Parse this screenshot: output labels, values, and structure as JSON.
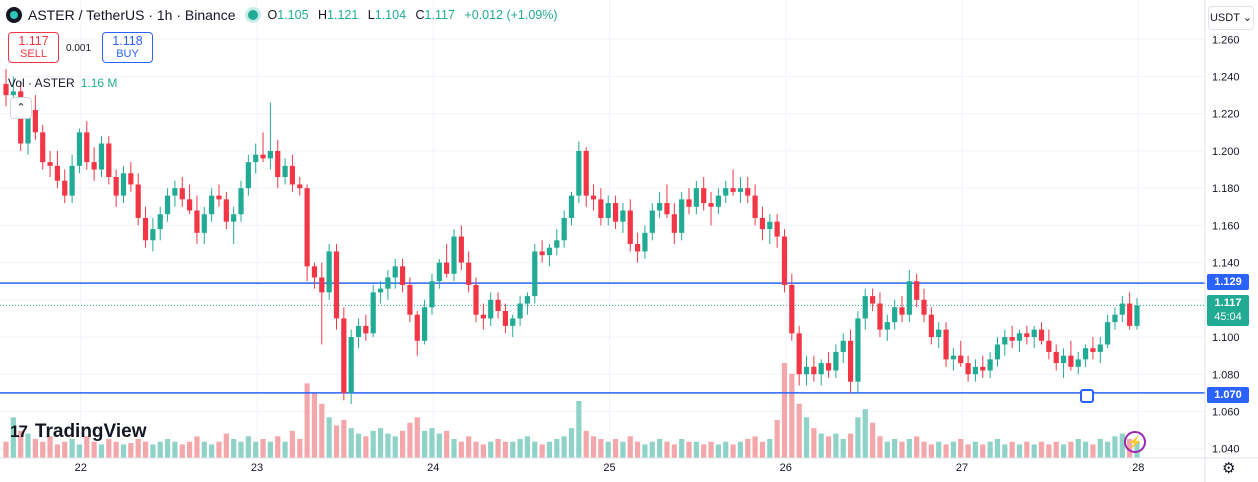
{
  "header": {
    "symbol": "ASTER / TetherUS · 1h · Binance",
    "o_key": "O",
    "o_val": "1.105",
    "h_key": "H",
    "h_val": "1.121",
    "l_key": "L",
    "l_val": "1.104",
    "c_key": "C",
    "c_val": "1.117",
    "change": "+0.012 (+1.09%)"
  },
  "trade": {
    "sell_price": "1.117",
    "sell_label": "SELL",
    "spread": "0.001",
    "buy_price": "1.118",
    "buy_label": "BUY"
  },
  "volume_legend": {
    "label": "Vol · ASTER",
    "value": "1.16 M"
  },
  "currency_button": "USDT",
  "collapse_icon": "chevron-up-icon",
  "brand": {
    "mark": "17",
    "name": "TradingView"
  },
  "price_labels": {
    "upper": "1.129",
    "lower": "1.070",
    "current": "1.117",
    "countdown": "45:04"
  },
  "colors": {
    "up": "#22ab94",
    "down": "#f23645",
    "up_vol": "#8fd3c8",
    "down_vol": "#f4a7ab",
    "hline": "#2962ff",
    "bg": "#ffffff"
  },
  "chart_data": {
    "type": "candlestick",
    "interval": "1h",
    "ylim": [
      1.035,
      1.265
    ],
    "y_ticks": [
      "1.260",
      "1.240",
      "1.220",
      "1.200",
      "1.180",
      "1.160",
      "1.140",
      "1.120",
      "1.100",
      "1.080",
      "1.060",
      "1.040"
    ],
    "x_ticks": [
      {
        "label": "22",
        "index": 5
      },
      {
        "label": "23",
        "index": 29
      },
      {
        "label": "24",
        "index": 53
      },
      {
        "label": "25",
        "index": 77
      },
      {
        "label": "26",
        "index": 101
      },
      {
        "label": "27",
        "index": 125
      },
      {
        "label": "28",
        "index": 149
      }
    ],
    "horizontal_lines": [
      1.129,
      1.07
    ],
    "current_price": 1.117,
    "grid": true,
    "candles": [
      [
        1.236,
        1.244,
        1.224,
        1.23
      ],
      [
        1.23,
        1.24,
        1.222,
        1.232
      ],
      [
        1.232,
        1.237,
        1.2,
        1.204
      ],
      [
        1.204,
        1.226,
        1.198,
        1.222
      ],
      [
        1.222,
        1.23,
        1.206,
        1.21
      ],
      [
        1.21,
        1.214,
        1.19,
        1.194
      ],
      [
        1.194,
        1.2,
        1.186,
        1.192
      ],
      [
        1.192,
        1.2,
        1.18,
        1.184
      ],
      [
        1.184,
        1.19,
        1.172,
        1.176
      ],
      [
        1.176,
        1.198,
        1.172,
        1.192
      ],
      [
        1.192,
        1.212,
        1.188,
        1.21
      ],
      [
        1.21,
        1.216,
        1.19,
        1.194
      ],
      [
        1.194,
        1.202,
        1.184,
        1.19
      ],
      [
        1.19,
        1.208,
        1.186,
        1.204
      ],
      [
        1.204,
        1.208,
        1.182,
        1.186
      ],
      [
        1.186,
        1.19,
        1.17,
        1.176
      ],
      [
        1.176,
        1.192,
        1.172,
        1.188
      ],
      [
        1.188,
        1.194,
        1.178,
        1.182
      ],
      [
        1.182,
        1.188,
        1.16,
        1.164
      ],
      [
        1.164,
        1.17,
        1.148,
        1.152
      ],
      [
        1.152,
        1.164,
        1.146,
        1.158
      ],
      [
        1.158,
        1.17,
        1.152,
        1.166
      ],
      [
        1.166,
        1.18,
        1.162,
        1.176
      ],
      [
        1.176,
        1.184,
        1.17,
        1.18
      ],
      [
        1.18,
        1.186,
        1.17,
        1.174
      ],
      [
        1.174,
        1.182,
        1.166,
        1.168
      ],
      [
        1.168,
        1.176,
        1.15,
        1.156
      ],
      [
        1.156,
        1.17,
        1.15,
        1.166
      ],
      [
        1.166,
        1.18,
        1.162,
        1.176
      ],
      [
        1.176,
        1.182,
        1.17,
        1.174
      ],
      [
        1.174,
        1.178,
        1.158,
        1.162
      ],
      [
        1.162,
        1.17,
        1.15,
        1.166
      ],
      [
        1.166,
        1.184,
        1.162,
        1.18
      ],
      [
        1.18,
        1.198,
        1.176,
        1.194
      ],
      [
        1.194,
        1.204,
        1.188,
        1.198
      ],
      [
        1.198,
        1.21,
        1.194,
        1.196
      ],
      [
        1.196,
        1.226,
        1.19,
        1.2
      ],
      [
        1.2,
        1.206,
        1.18,
        1.186
      ],
      [
        1.186,
        1.196,
        1.182,
        1.192
      ],
      [
        1.192,
        1.198,
        1.178,
        1.182
      ],
      [
        1.182,
        1.186,
        1.176,
        1.18
      ],
      [
        1.18,
        1.182,
        1.13,
        1.138
      ],
      [
        1.138,
        1.14,
        1.126,
        1.132
      ],
      [
        1.132,
        1.14,
        1.096,
        1.124
      ],
      [
        1.124,
        1.15,
        1.12,
        1.146
      ],
      [
        1.146,
        1.15,
        1.104,
        1.11
      ],
      [
        1.11,
        1.116,
        1.066,
        1.07
      ],
      [
        1.07,
        1.104,
        1.064,
        1.1
      ],
      [
        1.1,
        1.11,
        1.094,
        1.106
      ],
      [
        1.106,
        1.112,
        1.098,
        1.102
      ],
      [
        1.102,
        1.128,
        1.1,
        1.124
      ],
      [
        1.124,
        1.13,
        1.118,
        1.126
      ],
      [
        1.126,
        1.136,
        1.12,
        1.132
      ],
      [
        1.132,
        1.142,
        1.126,
        1.138
      ],
      [
        1.138,
        1.142,
        1.124,
        1.128
      ],
      [
        1.128,
        1.132,
        1.108,
        1.112
      ],
      [
        1.112,
        1.114,
        1.09,
        1.098
      ],
      [
        1.098,
        1.12,
        1.096,
        1.116
      ],
      [
        1.116,
        1.134,
        1.112,
        1.13
      ],
      [
        1.13,
        1.142,
        1.126,
        1.14
      ],
      [
        1.14,
        1.15,
        1.132,
        1.134
      ],
      [
        1.134,
        1.158,
        1.13,
        1.154
      ],
      [
        1.154,
        1.16,
        1.136,
        1.14
      ],
      [
        1.14,
        1.146,
        1.124,
        1.128
      ],
      [
        1.128,
        1.132,
        1.108,
        1.112
      ],
      [
        1.112,
        1.118,
        1.104,
        1.11
      ],
      [
        1.11,
        1.124,
        1.106,
        1.12
      ],
      [
        1.12,
        1.124,
        1.11,
        1.114
      ],
      [
        1.114,
        1.118,
        1.102,
        1.106
      ],
      [
        1.106,
        1.112,
        1.1,
        1.11
      ],
      [
        1.11,
        1.122,
        1.106,
        1.118
      ],
      [
        1.118,
        1.124,
        1.112,
        1.122
      ],
      [
        1.122,
        1.15,
        1.118,
        1.146
      ],
      [
        1.146,
        1.152,
        1.14,
        1.144
      ],
      [
        1.144,
        1.15,
        1.138,
        1.148
      ],
      [
        1.148,
        1.158,
        1.144,
        1.152
      ],
      [
        1.152,
        1.168,
        1.148,
        1.164
      ],
      [
        1.164,
        1.178,
        1.16,
        1.176
      ],
      [
        1.176,
        1.205,
        1.172,
        1.2
      ],
      [
        1.2,
        1.202,
        1.17,
        1.176
      ],
      [
        1.176,
        1.182,
        1.168,
        1.174
      ],
      [
        1.174,
        1.18,
        1.16,
        1.164
      ],
      [
        1.164,
        1.176,
        1.16,
        1.172
      ],
      [
        1.172,
        1.176,
        1.158,
        1.162
      ],
      [
        1.162,
        1.172,
        1.156,
        1.168
      ],
      [
        1.168,
        1.174,
        1.146,
        1.15
      ],
      [
        1.15,
        1.156,
        1.14,
        1.146
      ],
      [
        1.146,
        1.16,
        1.142,
        1.156
      ],
      [
        1.156,
        1.172,
        1.152,
        1.168
      ],
      [
        1.168,
        1.178,
        1.164,
        1.172
      ],
      [
        1.172,
        1.182,
        1.164,
        1.166
      ],
      [
        1.166,
        1.172,
        1.15,
        1.156
      ],
      [
        1.156,
        1.178,
        1.152,
        1.174
      ],
      [
        1.174,
        1.18,
        1.166,
        1.17
      ],
      [
        1.17,
        1.184,
        1.166,
        1.18
      ],
      [
        1.18,
        1.186,
        1.168,
        1.172
      ],
      [
        1.172,
        1.178,
        1.16,
        1.17
      ],
      [
        1.17,
        1.18,
        1.166,
        1.176
      ],
      [
        1.176,
        1.184,
        1.172,
        1.18
      ],
      [
        1.18,
        1.19,
        1.176,
        1.178
      ],
      [
        1.178,
        1.186,
        1.172,
        1.18
      ],
      [
        1.18,
        1.186,
        1.172,
        1.176
      ],
      [
        1.176,
        1.182,
        1.16,
        1.164
      ],
      [
        1.164,
        1.17,
        1.152,
        1.158
      ],
      [
        1.158,
        1.166,
        1.15,
        1.162
      ],
      [
        1.162,
        1.166,
        1.148,
        1.154
      ],
      [
        1.154,
        1.158,
        1.124,
        1.128
      ],
      [
        1.128,
        1.134,
        1.098,
        1.102
      ],
      [
        1.102,
        1.106,
        1.074,
        1.08
      ],
      [
        1.08,
        1.09,
        1.074,
        1.084
      ],
      [
        1.084,
        1.09,
        1.076,
        1.08
      ],
      [
        1.08,
        1.088,
        1.074,
        1.086
      ],
      [
        1.086,
        1.092,
        1.078,
        1.082
      ],
      [
        1.082,
        1.096,
        1.078,
        1.092
      ],
      [
        1.092,
        1.102,
        1.086,
        1.098
      ],
      [
        1.098,
        1.104,
        1.07,
        1.076
      ],
      [
        1.076,
        1.114,
        1.07,
        1.11
      ],
      [
        1.11,
        1.126,
        1.104,
        1.122
      ],
      [
        1.122,
        1.126,
        1.114,
        1.118
      ],
      [
        1.118,
        1.124,
        1.1,
        1.104
      ],
      [
        1.104,
        1.112,
        1.098,
        1.108
      ],
      [
        1.108,
        1.12,
        1.104,
        1.116
      ],
      [
        1.116,
        1.122,
        1.108,
        1.112
      ],
      [
        1.112,
        1.136,
        1.108,
        1.13
      ],
      [
        1.13,
        1.134,
        1.116,
        1.12
      ],
      [
        1.12,
        1.126,
        1.108,
        1.112
      ],
      [
        1.112,
        1.116,
        1.096,
        1.1
      ],
      [
        1.1,
        1.108,
        1.094,
        1.104
      ],
      [
        1.104,
        1.108,
        1.084,
        1.088
      ],
      [
        1.088,
        1.094,
        1.082,
        1.09
      ],
      [
        1.09,
        1.098,
        1.084,
        1.086
      ],
      [
        1.086,
        1.09,
        1.076,
        1.08
      ],
      [
        1.08,
        1.088,
        1.076,
        1.084
      ],
      [
        1.084,
        1.09,
        1.078,
        1.082
      ],
      [
        1.082,
        1.092,
        1.078,
        1.088
      ],
      [
        1.088,
        1.1,
        1.084,
        1.096
      ],
      [
        1.096,
        1.104,
        1.09,
        1.1
      ],
      [
        1.1,
        1.106,
        1.094,
        1.098
      ],
      [
        1.098,
        1.104,
        1.092,
        1.102
      ],
      [
        1.102,
        1.106,
        1.096,
        1.1
      ],
      [
        1.1,
        1.106,
        1.094,
        1.104
      ],
      [
        1.104,
        1.108,
        1.096,
        1.098
      ],
      [
        1.098,
        1.104,
        1.088,
        1.092
      ],
      [
        1.092,
        1.096,
        1.082,
        1.086
      ],
      [
        1.086,
        1.094,
        1.078,
        1.09
      ],
      [
        1.09,
        1.098,
        1.082,
        1.084
      ],
      [
        1.084,
        1.092,
        1.08,
        1.088
      ],
      [
        1.088,
        1.096,
        1.084,
        1.094
      ],
      [
        1.094,
        1.1,
        1.088,
        1.092
      ],
      [
        1.092,
        1.1,
        1.086,
        1.096
      ],
      [
        1.096,
        1.112,
        1.094,
        1.108
      ],
      [
        1.108,
        1.116,
        1.104,
        1.112
      ],
      [
        1.112,
        1.122,
        1.108,
        1.118
      ],
      [
        1.118,
        1.124,
        1.104,
        1.106
      ],
      [
        1.106,
        1.121,
        1.104,
        1.117
      ]
    ],
    "volume_relative": [
      0.12,
      0.3,
      0.2,
      0.18,
      0.14,
      0.12,
      0.16,
      0.1,
      0.12,
      0.14,
      0.1,
      0.16,
      0.12,
      0.1,
      0.14,
      0.12,
      0.1,
      0.11,
      0.14,
      0.12,
      0.1,
      0.12,
      0.14,
      0.12,
      0.1,
      0.12,
      0.16,
      0.12,
      0.1,
      0.12,
      0.18,
      0.14,
      0.12,
      0.16,
      0.12,
      0.14,
      0.12,
      0.16,
      0.12,
      0.2,
      0.14,
      0.55,
      0.48,
      0.4,
      0.3,
      0.24,
      0.28,
      0.22,
      0.18,
      0.16,
      0.2,
      0.22,
      0.18,
      0.16,
      0.2,
      0.26,
      0.3,
      0.2,
      0.22,
      0.18,
      0.2,
      0.14,
      0.12,
      0.16,
      0.12,
      0.1,
      0.12,
      0.14,
      0.12,
      0.12,
      0.14,
      0.16,
      0.12,
      0.1,
      0.12,
      0.14,
      0.16,
      0.22,
      0.42,
      0.2,
      0.16,
      0.14,
      0.12,
      0.14,
      0.12,
      0.16,
      0.12,
      0.1,
      0.12,
      0.14,
      0.12,
      0.1,
      0.14,
      0.12,
      0.12,
      0.1,
      0.12,
      0.1,
      0.12,
      0.1,
      0.12,
      0.14,
      0.16,
      0.12,
      0.14,
      0.28,
      0.7,
      0.62,
      0.4,
      0.3,
      0.22,
      0.18,
      0.16,
      0.18,
      0.14,
      0.18,
      0.3,
      0.36,
      0.26,
      0.16,
      0.12,
      0.14,
      0.12,
      0.14,
      0.16,
      0.12,
      0.1,
      0.12,
      0.1,
      0.12,
      0.14,
      0.1,
      0.12,
      0.1,
      0.12,
      0.14,
      0.1,
      0.12,
      0.1,
      0.12,
      0.1,
      0.12,
      0.1,
      0.12,
      0.1,
      0.12,
      0.14,
      0.12,
      0.1,
      0.14,
      0.12,
      0.16,
      0.18,
      0.14,
      0.12
    ]
  }
}
